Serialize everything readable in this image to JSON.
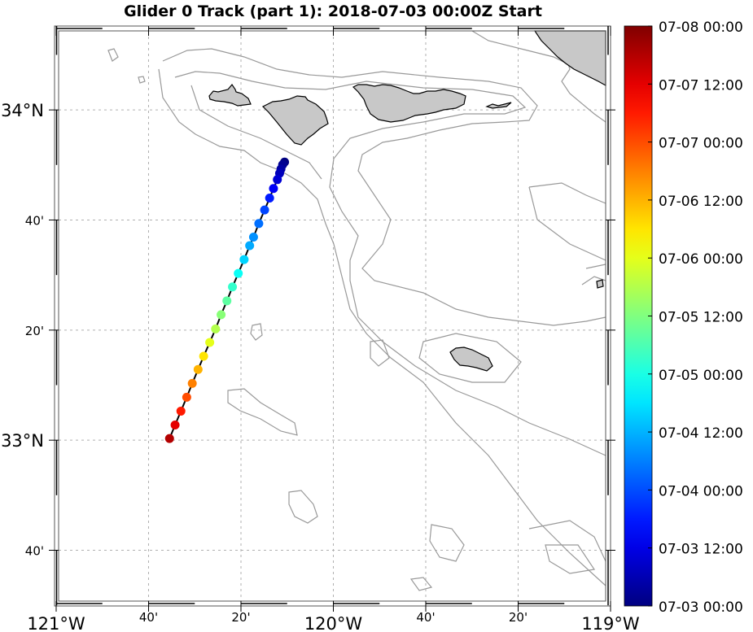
{
  "title": "Glider 0 Track (part 1): 2018-07-03 00:00Z Start",
  "map": {
    "lon_range": [
      -121.0,
      -119.0
    ],
    "lat_range": [
      32.498,
      34.254
    ],
    "land_color": "#c8c8c8",
    "contour_color": "#999999",
    "grid_color": "#b0b0b0",
    "lat_ticks": [
      {
        "value": 34.0,
        "label": "34°N",
        "major": true
      },
      {
        "value": 33.6667,
        "label": "40'",
        "major": false
      },
      {
        "value": 33.3333,
        "label": "20'",
        "major": false
      },
      {
        "value": 33.0,
        "label": "33°N",
        "major": true
      },
      {
        "value": 32.6667,
        "label": "40'",
        "major": false
      }
    ],
    "lon_ticks": [
      {
        "value": -121.0,
        "label": "121°W",
        "major": true
      },
      {
        "value": -120.6667,
        "label": "40'",
        "major": false
      },
      {
        "value": -120.3333,
        "label": "20'",
        "major": false
      },
      {
        "value": -120.0,
        "label": "120°W",
        "major": true
      },
      {
        "value": -119.6667,
        "label": "40'",
        "major": false
      },
      {
        "value": -119.3333,
        "label": "20'",
        "major": false
      },
      {
        "value": -119.0,
        "label": "119°W",
        "major": true
      }
    ]
  },
  "track": {
    "line_color": "#000000",
    "points": [
      {
        "lon": -120.176,
        "lat": 33.842,
        "hours": 0
      },
      {
        "lon": -120.183,
        "lat": 33.834,
        "hours": 2
      },
      {
        "lon": -120.189,
        "lat": 33.821,
        "hours": 4
      },
      {
        "lon": -120.194,
        "lat": 33.808,
        "hours": 7
      },
      {
        "lon": -120.202,
        "lat": 33.789,
        "hours": 10
      },
      {
        "lon": -120.216,
        "lat": 33.762,
        "hours": 14
      },
      {
        "lon": -120.23,
        "lat": 33.733,
        "hours": 18
      },
      {
        "lon": -120.248,
        "lat": 33.697,
        "hours": 23
      },
      {
        "lon": -120.269,
        "lat": 33.656,
        "hours": 28
      },
      {
        "lon": -120.288,
        "lat": 33.615,
        "hours": 32
      },
      {
        "lon": -120.302,
        "lat": 33.589,
        "hours": 35
      },
      {
        "lon": -120.322,
        "lat": 33.547,
        "hours": 40
      },
      {
        "lon": -120.343,
        "lat": 33.505,
        "hours": 46
      },
      {
        "lon": -120.364,
        "lat": 33.464,
        "hours": 51
      },
      {
        "lon": -120.384,
        "lat": 33.422,
        "hours": 56
      },
      {
        "lon": -120.405,
        "lat": 33.38,
        "hours": 61
      },
      {
        "lon": -120.425,
        "lat": 33.337,
        "hours": 66
      },
      {
        "lon": -120.446,
        "lat": 33.296,
        "hours": 72
      },
      {
        "lon": -120.468,
        "lat": 33.254,
        "hours": 78
      },
      {
        "lon": -120.488,
        "lat": 33.214,
        "hours": 84
      },
      {
        "lon": -120.509,
        "lat": 33.172,
        "hours": 90
      },
      {
        "lon": -120.529,
        "lat": 33.13,
        "hours": 96
      },
      {
        "lon": -120.55,
        "lat": 33.088,
        "hours": 102
      },
      {
        "lon": -120.571,
        "lat": 33.046,
        "hours": 108
      },
      {
        "lon": -120.591,
        "lat": 33.005,
        "hours": 114
      }
    ]
  },
  "colorbar": {
    "colormap": "jet",
    "range_hours": [
      0,
      120
    ],
    "ticks": [
      {
        "hours": 120,
        "label": "07-08 00:00"
      },
      {
        "hours": 108,
        "label": "07-07 12:00"
      },
      {
        "hours": 96,
        "label": "07-07 00:00"
      },
      {
        "hours": 84,
        "label": "07-06 12:00"
      },
      {
        "hours": 72,
        "label": "07-06 00:00"
      },
      {
        "hours": 60,
        "label": "07-05 12:00"
      },
      {
        "hours": 48,
        "label": "07-05 00:00"
      },
      {
        "hours": 36,
        "label": "07-04 12:00"
      },
      {
        "hours": 24,
        "label": "07-04 00:00"
      },
      {
        "hours": 12,
        "label": "07-03 12:00"
      },
      {
        "hours": 0,
        "label": "07-03 00:00"
      }
    ]
  }
}
